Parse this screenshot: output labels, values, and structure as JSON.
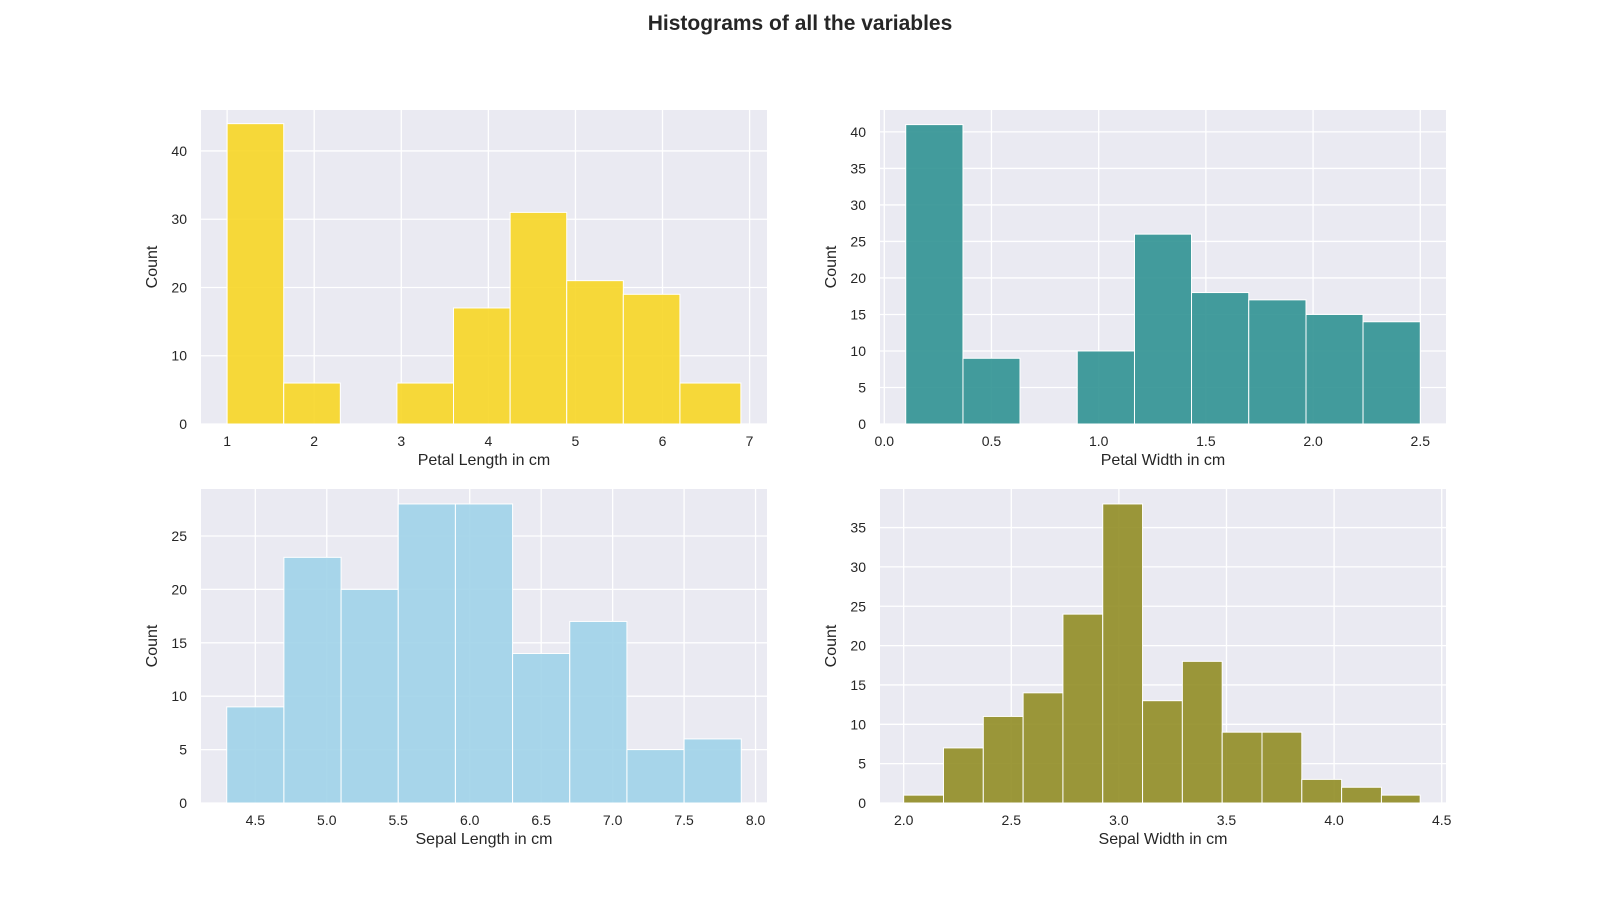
{
  "figure": {
    "title": "Histograms of all the variables"
  },
  "chart_data": [
    {
      "type": "bar",
      "title": "",
      "xlabel": "Petal Length in cm",
      "ylabel": "Count",
      "color": "#f7d51f",
      "xlim": [
        0.7,
        7.2
      ],
      "ylim": [
        0,
        46
      ],
      "xticks": [
        1,
        2,
        3,
        4,
        5,
        6,
        7
      ],
      "xtick_labels": [
        "1",
        "2",
        "3",
        "4",
        "5",
        "6",
        "7"
      ],
      "yticks": [
        0,
        10,
        20,
        30,
        40
      ],
      "bin_edges": [
        1.0,
        1.65,
        2.3,
        2.95,
        3.6,
        4.25,
        4.9,
        5.55,
        6.2,
        6.9
      ],
      "counts": [
        44,
        6,
        0,
        6,
        17,
        31,
        21,
        19,
        6
      ]
    },
    {
      "type": "bar",
      "title": "",
      "xlabel": "Petal Width in cm",
      "ylabel": "Count",
      "color": "#2a9090",
      "xlim": [
        -0.02,
        2.62
      ],
      "ylim": [
        0,
        43
      ],
      "xticks": [
        0,
        0.5,
        1,
        1.5,
        2,
        2.5
      ],
      "xtick_labels": [
        "0.0",
        "0.5",
        "1.0",
        "1.5",
        "2.0",
        "2.5"
      ],
      "yticks": [
        0,
        5,
        10,
        15,
        20,
        25,
        30,
        35,
        40
      ],
      "bin_edges": [
        0.1,
        0.367,
        0.633,
        0.9,
        1.167,
        1.433,
        1.7,
        1.967,
        2.233,
        2.5
      ],
      "counts": [
        41,
        9,
        0,
        10,
        26,
        18,
        17,
        15,
        14
      ]
    },
    {
      "type": "bar",
      "title": "",
      "xlabel": "Sepal Length in cm",
      "ylabel": "Count",
      "color": "#9dd1e8",
      "xlim": [
        4.12,
        8.08
      ],
      "ylim": [
        0,
        29.4
      ],
      "xticks": [
        4.5,
        5,
        5.5,
        6,
        6.5,
        7,
        7.5,
        8
      ],
      "xtick_labels": [
        "4.5",
        "5.0",
        "5.5",
        "6.0",
        "6.5",
        "7.0",
        "7.5",
        "8.0"
      ],
      "yticks": [
        0,
        5,
        10,
        15,
        20,
        25
      ],
      "bin_edges": [
        4.3,
        4.7,
        5.1,
        5.5,
        5.9,
        6.3,
        6.7,
        7.1,
        7.5,
        7.9
      ],
      "counts": [
        9,
        23,
        20,
        28,
        28,
        14,
        17,
        5,
        6
      ]
    },
    {
      "type": "bar",
      "title": "",
      "xlabel": "Sepal Width in cm",
      "ylabel": "Count",
      "color": "#8e8a1f",
      "xlim": [
        1.89,
        4.52
      ],
      "ylim": [
        0,
        39.9
      ],
      "xticks": [
        2,
        2.5,
        3,
        3.5,
        4,
        4.5
      ],
      "xtick_labels": [
        "2.0",
        "2.5",
        "3.0",
        "3.5",
        "4.0",
        "4.5"
      ],
      "yticks": [
        0,
        5,
        10,
        15,
        20,
        25,
        30,
        35
      ],
      "bin_edges": [
        2.0,
        2.185,
        2.37,
        2.555,
        2.74,
        2.925,
        3.11,
        3.295,
        3.48,
        3.665,
        3.85,
        4.035,
        4.22,
        4.4
      ],
      "counts": [
        1,
        7,
        11,
        14,
        24,
        38,
        13,
        18,
        9,
        9,
        3,
        2,
        1
      ]
    }
  ]
}
